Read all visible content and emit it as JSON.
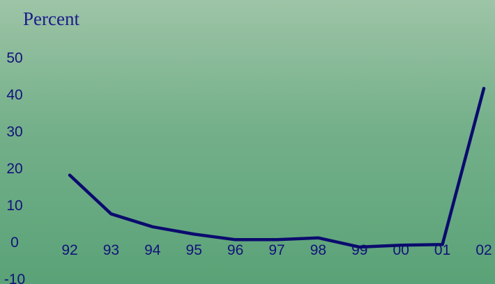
{
  "chart_data": {
    "type": "line",
    "title": "",
    "ylabel": "Percent",
    "xlabel": "",
    "categories": [
      "92",
      "93",
      "94",
      "95",
      "96",
      "97",
      "98",
      "99",
      "00",
      "01",
      "02"
    ],
    "yticks": [
      "50",
      "40",
      "30",
      "20",
      "10",
      "0",
      "-10"
    ],
    "ylim": [
      -10,
      50
    ],
    "grid": false,
    "legend": "none",
    "colors": {
      "line": "#0b0b6e",
      "text": "#12127a",
      "background_top": "#9dc4a6",
      "background_bottom": "#5aa277"
    },
    "series": [
      {
        "values": [
          18,
          7.5,
          4,
          2,
          0.5,
          0.5,
          1,
          -1.5,
          -1,
          -0.8,
          41.5
        ]
      }
    ]
  }
}
